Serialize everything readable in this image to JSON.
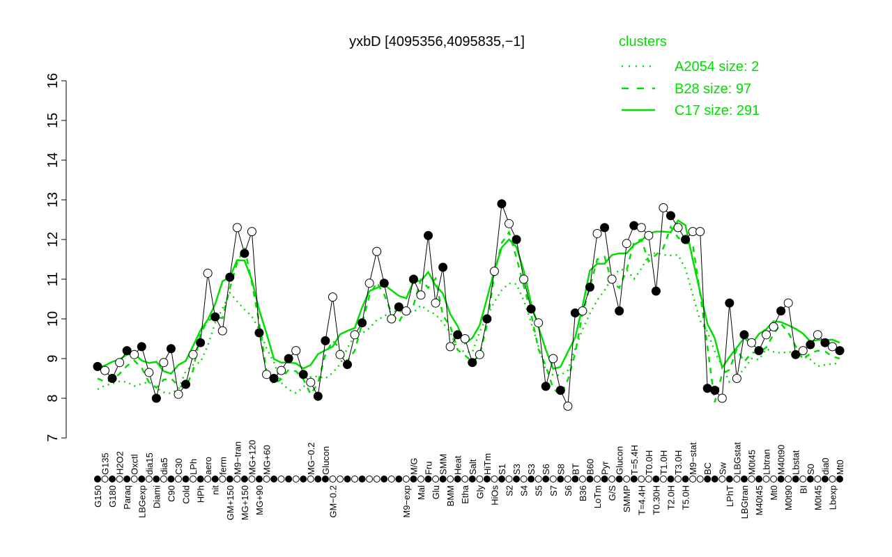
{
  "chart_data": {
    "type": "line",
    "title": "yxbD [4095356,4095835,−1]",
    "xlabel": "",
    "ylabel": "",
    "ylim": [
      7,
      16
    ],
    "yticks": [
      7,
      8,
      9,
      10,
      11,
      12,
      13,
      14,
      15,
      16
    ],
    "grid": false,
    "legend": {
      "title": "clusters",
      "placement": "top-right",
      "color": "#00dd00",
      "entries": [
        {
          "label": "A2054 size: 2",
          "style": "dotted"
        },
        {
          "label": "B28 size: 97",
          "style": "dashed"
        },
        {
          "label": "C17 size: 291",
          "style": "solid"
        }
      ]
    },
    "colors": {
      "points": "#000000",
      "clusters": "#00dd00"
    },
    "points": [
      {
        "label": "G150",
        "y": 8.8,
        "filled": true
      },
      {
        "label": "G135",
        "y": 8.7,
        "filled": false
      },
      {
        "label": "G180",
        "y": 8.5,
        "filled": true
      },
      {
        "label": "H2O2",
        "y": 8.9,
        "filled": false
      },
      {
        "label": "Paraq",
        "y": 9.2,
        "filled": true
      },
      {
        "label": "Oxctl",
        "y": 9.1,
        "filled": false
      },
      {
        "label": "LBGexp",
        "y": 9.3,
        "filled": true
      },
      {
        "label": "dia15",
        "y": 8.65,
        "filled": false
      },
      {
        "label": "Diami",
        "y": 8.0,
        "filled": true
      },
      {
        "label": "dia5",
        "y": 8.9,
        "filled": false
      },
      {
        "label": "C90",
        "y": 9.25,
        "filled": true
      },
      {
        "label": "C30",
        "y": 8.1,
        "filled": false
      },
      {
        "label": "Cold",
        "y": 8.35,
        "filled": true
      },
      {
        "label": "LPh",
        "y": 9.1,
        "filled": false
      },
      {
        "label": "HPh",
        "y": 9.4,
        "filled": true
      },
      {
        "label": "aero",
        "y": 11.15,
        "filled": false
      },
      {
        "label": "nit",
        "y": 10.05,
        "filled": true
      },
      {
        "label": "ferm",
        "y": 9.7,
        "filled": false
      },
      {
        "label": "GM+150",
        "y": 11.05,
        "filled": true
      },
      {
        "label": "M9−tran",
        "y": 12.3,
        "filled": false
      },
      {
        "label": "MG+150",
        "y": 11.65,
        "filled": true
      },
      {
        "label": "MG+120",
        "y": 12.2,
        "filled": false
      },
      {
        "label": "MG+90",
        "y": 9.65,
        "filled": true
      },
      {
        "label": "MG+60",
        "y": 8.6,
        "filled": false
      },
      {
        "label": "",
        "y": 8.5,
        "filled": true
      },
      {
        "label": "",
        "y": 8.7,
        "filled": false
      },
      {
        "label": "",
        "y": 9.0,
        "filled": true
      },
      {
        "label": "",
        "y": 9.2,
        "filled": false
      },
      {
        "label": "",
        "y": 8.6,
        "filled": true
      },
      {
        "label": "MG−0.2",
        "y": 8.4,
        "filled": false
      },
      {
        "label": "",
        "y": 8.05,
        "filled": true
      },
      {
        "label": "Glucon",
        "y": 9.45,
        "filled": true
      },
      {
        "label": "GM−0.2",
        "y": 10.55,
        "filled": false
      },
      {
        "label": "",
        "y": 9.1,
        "filled": false
      },
      {
        "label": "",
        "y": 8.85,
        "filled": true
      },
      {
        "label": "",
        "y": 9.6,
        "filled": false
      },
      {
        "label": "",
        "y": 9.9,
        "filled": true
      },
      {
        "label": "",
        "y": 10.9,
        "filled": false
      },
      {
        "label": "",
        "y": 11.7,
        "filled": false
      },
      {
        "label": "",
        "y": 10.9,
        "filled": true
      },
      {
        "label": "",
        "y": 10.0,
        "filled": false
      },
      {
        "label": "",
        "y": 10.3,
        "filled": true
      },
      {
        "label": "M9−exp",
        "y": 10.2,
        "filled": false
      },
      {
        "label": "M/G",
        "y": 11.0,
        "filled": true
      },
      {
        "label": "Mal",
        "y": 10.6,
        "filled": false
      },
      {
        "label": "Fru",
        "y": 12.1,
        "filled": true
      },
      {
        "label": "Glu",
        "y": 10.4,
        "filled": false
      },
      {
        "label": "SMM",
        "y": 11.3,
        "filled": true
      },
      {
        "label": "BMM",
        "y": 9.3,
        "filled": false
      },
      {
        "label": "Heat",
        "y": 9.6,
        "filled": true
      },
      {
        "label": "Etha",
        "y": 9.5,
        "filled": false
      },
      {
        "label": "Salt",
        "y": 8.9,
        "filled": true
      },
      {
        "label": "Gly",
        "y": 9.1,
        "filled": false
      },
      {
        "label": "HiTm",
        "y": 10.0,
        "filled": true
      },
      {
        "label": "HiOs",
        "y": 11.2,
        "filled": false
      },
      {
        "label": "S1",
        "y": 12.9,
        "filled": true
      },
      {
        "label": "S2",
        "y": 12.4,
        "filled": false
      },
      {
        "label": "S3",
        "y": 12.0,
        "filled": true
      },
      {
        "label": "S4",
        "y": 11.0,
        "filled": false
      },
      {
        "label": "S3",
        "y": 10.25,
        "filled": true
      },
      {
        "label": "S5",
        "y": 9.9,
        "filled": false
      },
      {
        "label": "S6",
        "y": 8.3,
        "filled": true
      },
      {
        "label": "S7",
        "y": 9.0,
        "filled": false
      },
      {
        "label": "S8",
        "y": 8.2,
        "filled": true
      },
      {
        "label": "S6",
        "y": 7.8,
        "filled": false
      },
      {
        "label": "BT",
        "y": 10.15,
        "filled": true
      },
      {
        "label": "B36",
        "y": 10.2,
        "filled": false
      },
      {
        "label": "B60",
        "y": 10.8,
        "filled": true
      },
      {
        "label": "LoTm",
        "y": 12.15,
        "filled": false
      },
      {
        "label": "Pyr",
        "y": 12.3,
        "filled": true
      },
      {
        "label": "G/S",
        "y": 11.0,
        "filled": false
      },
      {
        "label": "Glucon",
        "y": 10.2,
        "filled": true
      },
      {
        "label": "SMMP",
        "y": 11.9,
        "filled": false
      },
      {
        "label": "T=5.4H",
        "y": 12.35,
        "filled": true
      },
      {
        "label": "T=4.4H",
        "y": 12.3,
        "filled": false
      },
      {
        "label": "T0.0H",
        "y": 12.1,
        "filled": false
      },
      {
        "label": "T0.30H",
        "y": 10.7,
        "filled": true
      },
      {
        "label": "T1.0H",
        "y": 12.8,
        "filled": false
      },
      {
        "label": "T2.0H",
        "y": 12.6,
        "filled": true
      },
      {
        "label": "T3.0H",
        "y": 12.3,
        "filled": false
      },
      {
        "label": "T5.0H",
        "y": 12.0,
        "filled": true
      },
      {
        "label": "M9−stat",
        "y": 12.2,
        "filled": false
      },
      {
        "label": "",
        "y": 12.2,
        "filled": false
      },
      {
        "label": "BC",
        "y": 8.25,
        "filled": true
      },
      {
        "label": "",
        "y": 8.2,
        "filled": true
      },
      {
        "label": "Sw",
        "y": 8.0,
        "filled": false
      },
      {
        "label": "LPhT",
        "y": 10.4,
        "filled": true
      },
      {
        "label": "LBGstat",
        "y": 8.5,
        "filled": false
      },
      {
        "label": "LBGtran",
        "y": 9.6,
        "filled": true
      },
      {
        "label": "M0t45",
        "y": 9.4,
        "filled": false
      },
      {
        "label": "M40t45",
        "y": 9.2,
        "filled": true
      },
      {
        "label": "Lbtran",
        "y": 9.6,
        "filled": false
      },
      {
        "label": "Mt0",
        "y": 9.8,
        "filled": false
      },
      {
        "label": "M40t90",
        "y": 10.2,
        "filled": true
      },
      {
        "label": "M0t90",
        "y": 10.4,
        "filled": false
      },
      {
        "label": "Lbstat",
        "y": 9.1,
        "filled": true
      },
      {
        "label": "BI",
        "y": 9.2,
        "filled": false
      },
      {
        "label": "S0",
        "y": 9.35,
        "filled": true
      },
      {
        "label": "M0t45",
        "y": 9.6,
        "filled": false
      },
      {
        "label": "dia0",
        "y": 9.4,
        "filled": true
      },
      {
        "label": "Lbexp",
        "y": 9.3,
        "filled": false
      },
      {
        "label": "Mt0",
        "y": 9.2,
        "filled": true
      }
    ]
  }
}
